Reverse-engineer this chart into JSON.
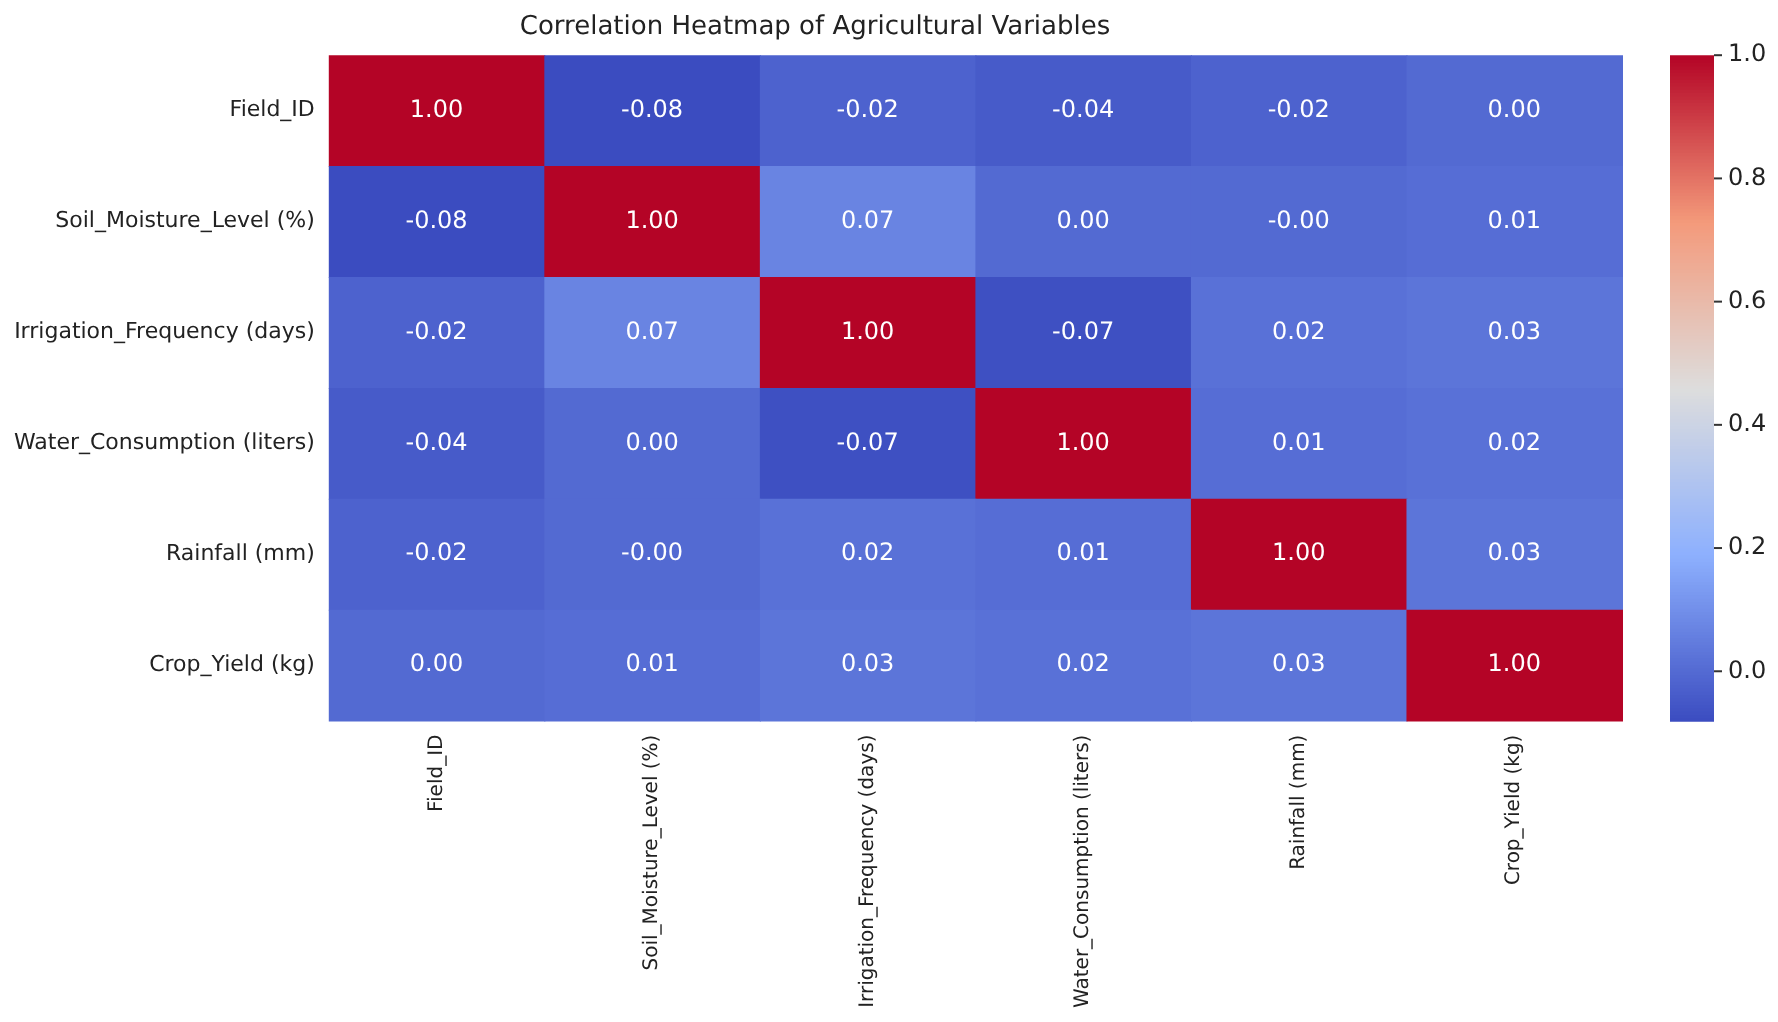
{
  "chart_data": {
    "type": "heatmap",
    "title": "Correlation Heatmap of Agricultural Variables",
    "categories": [
      "Field_ID",
      "Soil_Moisture_Level (%)",
      "Irrigation_Frequency (days)",
      "Water_Consumption (liters)",
      "Rainfall (mm)",
      "Crop_Yield (kg)"
    ],
    "y_categories": [
      "Field_ID",
      "Soil_Moisture_Level (%)",
      "Irrigation_Frequency (days)",
      "Water_Consumption (liters)",
      "Rainfall (mm)",
      "Crop_Yield (kg)"
    ],
    "cells": [
      [
        1.0,
        -0.08,
        -0.02,
        -0.04,
        -0.02,
        0.0
      ],
      [
        -0.08,
        1.0,
        0.07,
        0.0,
        0.0,
        0.01
      ],
      [
        -0.02,
        0.07,
        1.0,
        -0.07,
        0.02,
        0.03
      ],
      [
        -0.04,
        0.0,
        -0.07,
        1.0,
        0.01,
        0.02
      ],
      [
        -0.02,
        0.0,
        0.02,
        0.01,
        1.0,
        0.03
      ],
      [
        0.0,
        0.01,
        0.03,
        0.02,
        0.03,
        1.0
      ]
    ],
    "cell_labels": [
      [
        "1.00",
        "-0.08",
        "-0.02",
        "-0.04",
        "-0.02",
        "0.00"
      ],
      [
        "-0.08",
        "1.00",
        "0.07",
        "0.00",
        "-0.00",
        "0.01"
      ],
      [
        "-0.02",
        "0.07",
        "1.00",
        "-0.07",
        "0.02",
        "0.03"
      ],
      [
        "-0.04",
        "0.00",
        "-0.07",
        "1.00",
        "0.01",
        "0.02"
      ],
      [
        "-0.02",
        "-0.00",
        "0.02",
        "0.01",
        "1.00",
        "0.03"
      ],
      [
        "0.00",
        "0.01",
        "0.03",
        "0.02",
        "0.03",
        "1.00"
      ]
    ],
    "clim": [
      -0.08,
      1.0
    ],
    "cticks": [
      {
        "value": 0,
        "label": "0.0"
      },
      {
        "value": 0.2,
        "label": "0.2"
      },
      {
        "value": 0.4,
        "label": "0.4"
      },
      {
        "value": 0.6,
        "label": "0.6"
      },
      {
        "value": 0.8,
        "label": "0.8"
      },
      {
        "value": 1,
        "label": "1.0"
      }
    ]
  }
}
